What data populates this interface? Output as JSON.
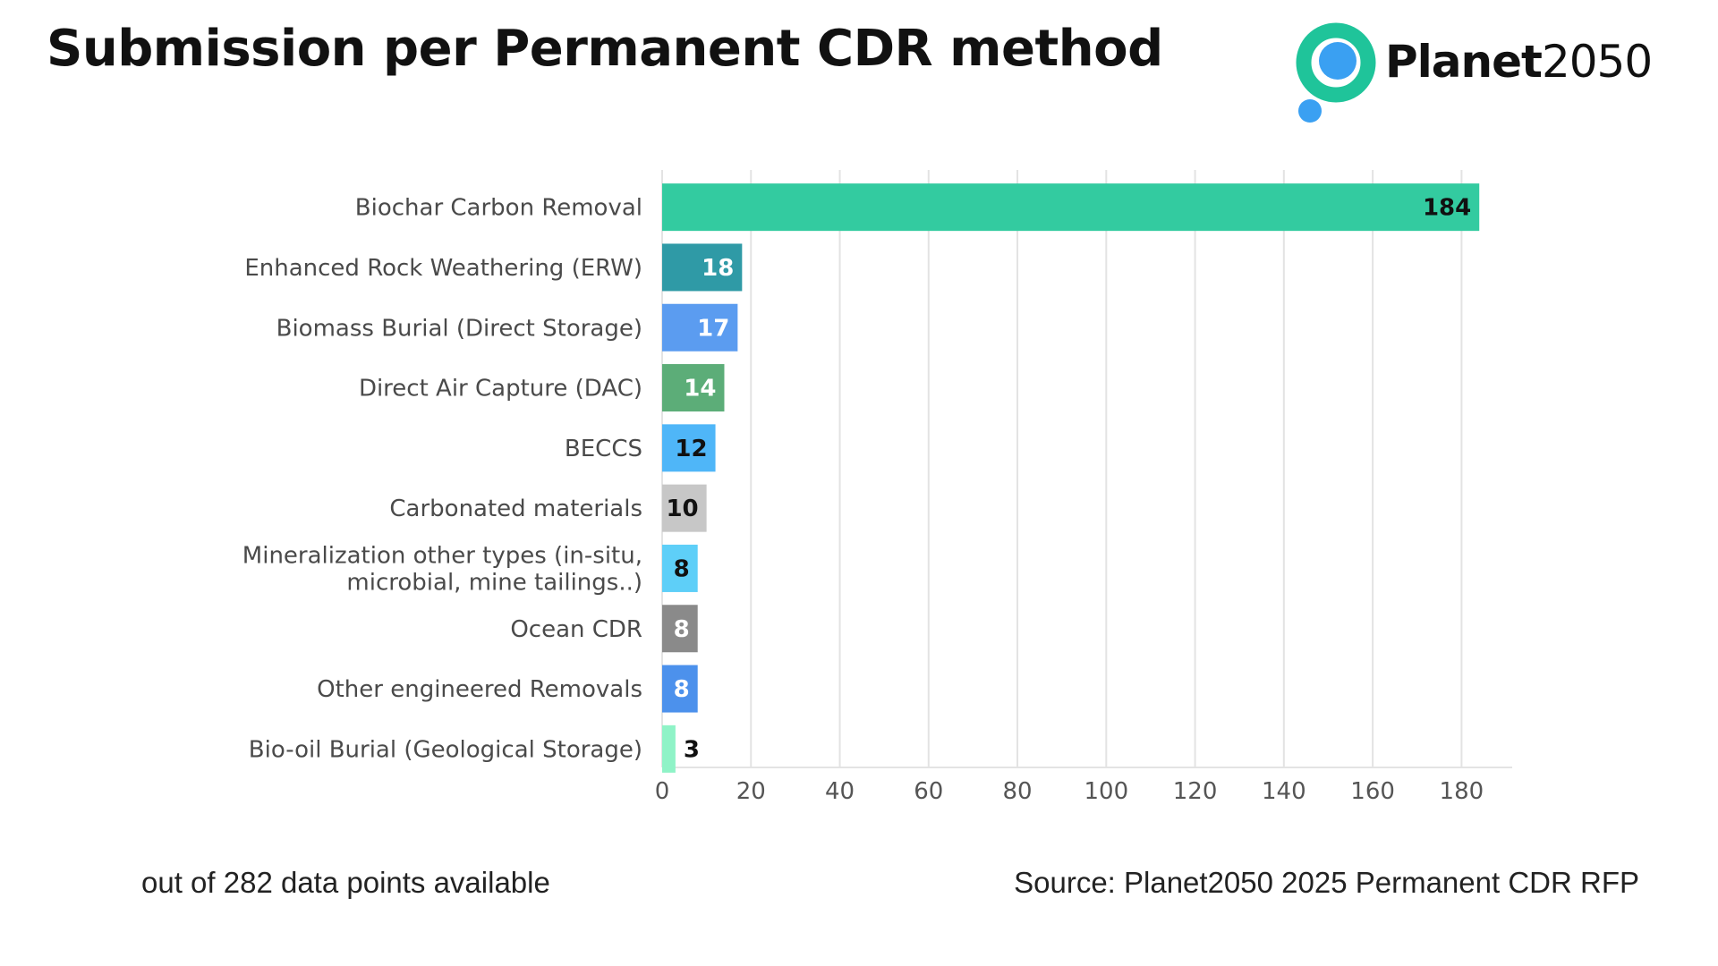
{
  "title": "Submission per Permanent CDR method",
  "logo": {
    "name": "Planet",
    "number": "2050"
  },
  "footnote": "out of 282 data points available",
  "source": "Source: Planet2050 2025 Permanent CDR RFP",
  "colors": {
    "biochar": "#33cba0",
    "erw": "#2f9aa6",
    "biomass": "#5b9cf0",
    "dac": "#5cad78",
    "beccs": "#4fb6f8",
    "carbonated": "#c7c7c7",
    "mineralization": "#5ecff8",
    "ocean": "#8a8a8a",
    "other_engineered": "#4c91ec",
    "biooil": "#8ff3c7",
    "logo_green": "#1fc49a",
    "logo_blue": "#3aa0f2"
  },
  "chart_data": {
    "type": "bar",
    "orientation": "horizontal",
    "categories": [
      [
        "Biochar Carbon Removal"
      ],
      [
        "Enhanced Rock Weathering (ERW)"
      ],
      [
        "Biomass Burial (Direct Storage)"
      ],
      [
        "Direct Air Capture (DAC)"
      ],
      [
        "BECCS"
      ],
      [
        "Carbonated materials"
      ],
      [
        "Mineralization other types (in-situ,",
        "microbial, mine tailings..)"
      ],
      [
        "Ocean CDR"
      ],
      [
        "Other engineered Removals"
      ],
      [
        "Bio-oil Burial (Geological Storage)"
      ]
    ],
    "values": [
      184,
      18,
      17,
      14,
      12,
      10,
      8,
      8,
      8,
      3
    ],
    "bar_colors": [
      "biochar",
      "erw",
      "biomass",
      "dac",
      "beccs",
      "carbonated",
      "mineralization",
      "ocean",
      "other_engineered",
      "biooil"
    ],
    "label_inside": [
      true,
      true,
      true,
      true,
      true,
      true,
      true,
      true,
      true,
      false
    ],
    "label_color": [
      "dark",
      "light",
      "light",
      "light",
      "dark",
      "dark",
      "dark",
      "light",
      "light",
      "dark"
    ],
    "xlim": [
      0,
      190
    ],
    "xticks": [
      0,
      20,
      40,
      60,
      80,
      100,
      120,
      140,
      160,
      180
    ],
    "grid": true,
    "legend": "none"
  }
}
